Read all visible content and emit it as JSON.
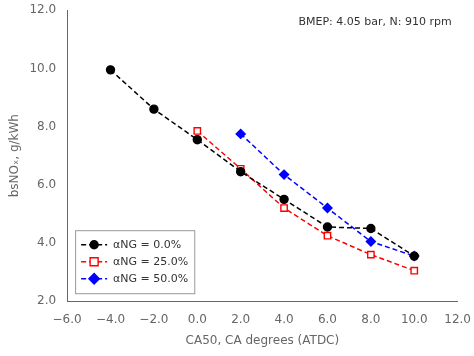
{
  "chart_data": {
    "type": "line",
    "annotation": "BMEP: 4.05 bar, N: 910 rpm",
    "xlabel": "CA50, CA degrees (ATDC)",
    "ylabel": "bsNOₓ, g/kWh",
    "xlim": [
      -6.0,
      12.0
    ],
    "ylim": [
      2.0,
      12.0
    ],
    "xticks": [
      {
        "value": -6,
        "label": "−6.0"
      },
      {
        "value": -4,
        "label": "−4.0"
      },
      {
        "value": -2,
        "label": "−2.0"
      },
      {
        "value": 0,
        "label": "0.0"
      },
      {
        "value": 2,
        "label": "2.0"
      },
      {
        "value": 4,
        "label": "4.0"
      },
      {
        "value": 6,
        "label": "6.0"
      },
      {
        "value": 8,
        "label": "8.0"
      },
      {
        "value": 10,
        "label": "10.0"
      },
      {
        "value": 12,
        "label": "12.0"
      }
    ],
    "yticks": [
      {
        "value": 2,
        "label": "2.0"
      },
      {
        "value": 4,
        "label": "4.0"
      },
      {
        "value": 6,
        "label": "6.0"
      },
      {
        "value": 8,
        "label": "8.0"
      },
      {
        "value": 10,
        "label": "10.0"
      },
      {
        "value": 12,
        "label": "12.0"
      }
    ],
    "grid": false,
    "legend": "lower left",
    "series": [
      {
        "name": "αNG = 0.0%",
        "color": "black",
        "marker": "circle",
        "line_style": "dashed",
        "x": [
          -4,
          -2,
          0,
          2,
          4,
          6,
          8,
          10
        ],
        "values": [
          9.95,
          8.6,
          7.55,
          6.45,
          5.5,
          4.55,
          4.5,
          3.55
        ]
      },
      {
        "name": "αNG = 25.0%",
        "color": "red",
        "marker": "square-open",
        "line_style": "dashed",
        "x": [
          0,
          2,
          4,
          6,
          8,
          10
        ],
        "values": [
          7.85,
          6.55,
          5.2,
          4.25,
          3.6,
          3.05
        ]
      },
      {
        "name": "αNG = 50.0%",
        "color": "blue",
        "marker": "diamond",
        "line_style": "dashed",
        "x": [
          2,
          4,
          6,
          8,
          10
        ],
        "values": [
          7.75,
          6.35,
          5.2,
          4.05,
          3.55
        ]
      }
    ]
  }
}
